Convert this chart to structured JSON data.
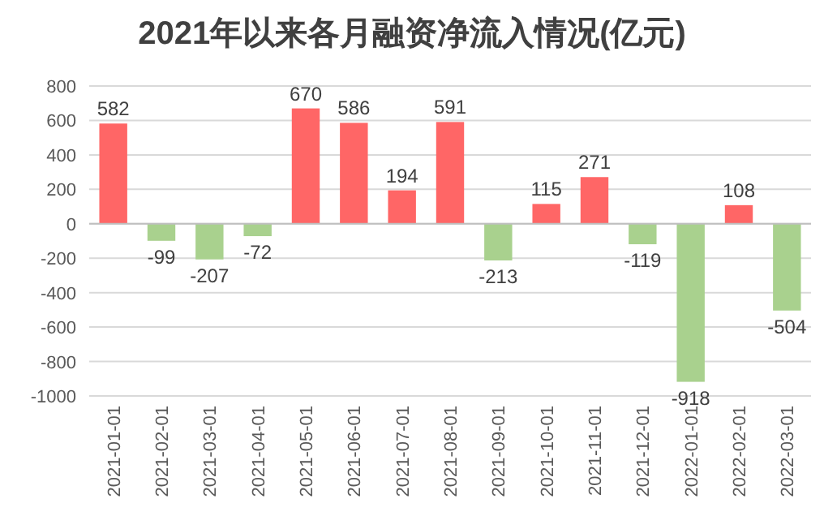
{
  "chart_data": {
    "type": "bar",
    "title": "2021年以来各月融资净流入情况(亿元)",
    "categories": [
      "2021-01-01",
      "2021-02-01",
      "2021-03-01",
      "2021-04-01",
      "2021-05-01",
      "2021-06-01",
      "2021-07-01",
      "2021-08-01",
      "2021-09-01",
      "2021-10-01",
      "2021-11-01",
      "2021-12-01",
      "2022-01-01",
      "2022-02-01",
      "2022-03-01"
    ],
    "values": [
      582,
      -99,
      -207,
      -72,
      670,
      586,
      194,
      591,
      -213,
      115,
      271,
      -119,
      -918,
      108,
      -504
    ],
    "colors": [
      "#ff6666",
      "#a9d18e",
      "#a9d18e",
      "#a9d18e",
      "#ff6666",
      "#ff6666",
      "#ff6666",
      "#ff6666",
      "#a9d18e",
      "#ff6666",
      "#ff6666",
      "#a9d18e",
      "#a9d18e",
      "#ff6666",
      "#a9d18e"
    ],
    "ylim": [
      -1000,
      800
    ],
    "yticks": [
      -1000,
      -800,
      -600,
      -400,
      -200,
      0,
      200,
      400,
      600,
      800
    ],
    "grid": "y",
    "data_labels": true
  }
}
